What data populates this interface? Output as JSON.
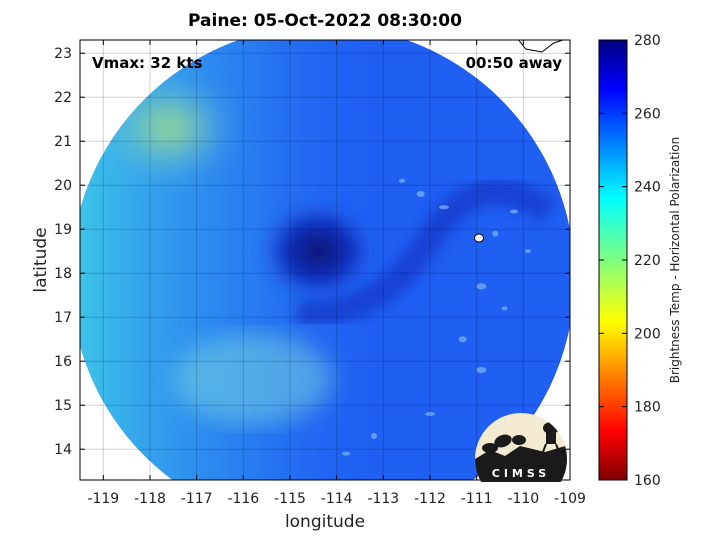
{
  "title": "Paine: 05-Oct-2022 08:30:00",
  "annotations": {
    "vmax": "Vmax: 32 kts",
    "away": "00:50 away"
  },
  "logo_text": "CIMSS",
  "colors": {
    "background": "#ffffff",
    "axes_frame": "#000000",
    "grid": "#bfbfbf",
    "storm_core": "#0a1a9a",
    "ocean_mid": "#1e5cf0",
    "ocean_light": "#4ab4ee",
    "cloud_warm": "#9adf7c"
  },
  "chart_data": {
    "type": "heatmap",
    "title": "Paine: 05-Oct-2022 08:30:00",
    "xlabel": "longitude",
    "ylabel": "latitude",
    "xlim": [
      -119.5,
      -109
    ],
    "ylim": [
      13.3,
      23.3
    ],
    "xticks": [
      -119,
      -118,
      -117,
      -116,
      -115,
      -114,
      -113,
      -112,
      -111,
      -110,
      -109
    ],
    "yticks": [
      14,
      15,
      16,
      17,
      18,
      19,
      20,
      21,
      22,
      23
    ],
    "grid": true,
    "storm_center": {
      "lon": -114.4,
      "lat": 18.5
    },
    "scan_circle": {
      "center_lon": -114.3,
      "center_lat": 17.9,
      "radius_deg": 5.4
    },
    "colorbar": {
      "label": "Brightness Temp - Horizontal Polarization",
      "range": [
        160,
        280
      ],
      "ticks": [
        160,
        180,
        200,
        220,
        240,
        260,
        280
      ],
      "colormap": "jet"
    }
  }
}
